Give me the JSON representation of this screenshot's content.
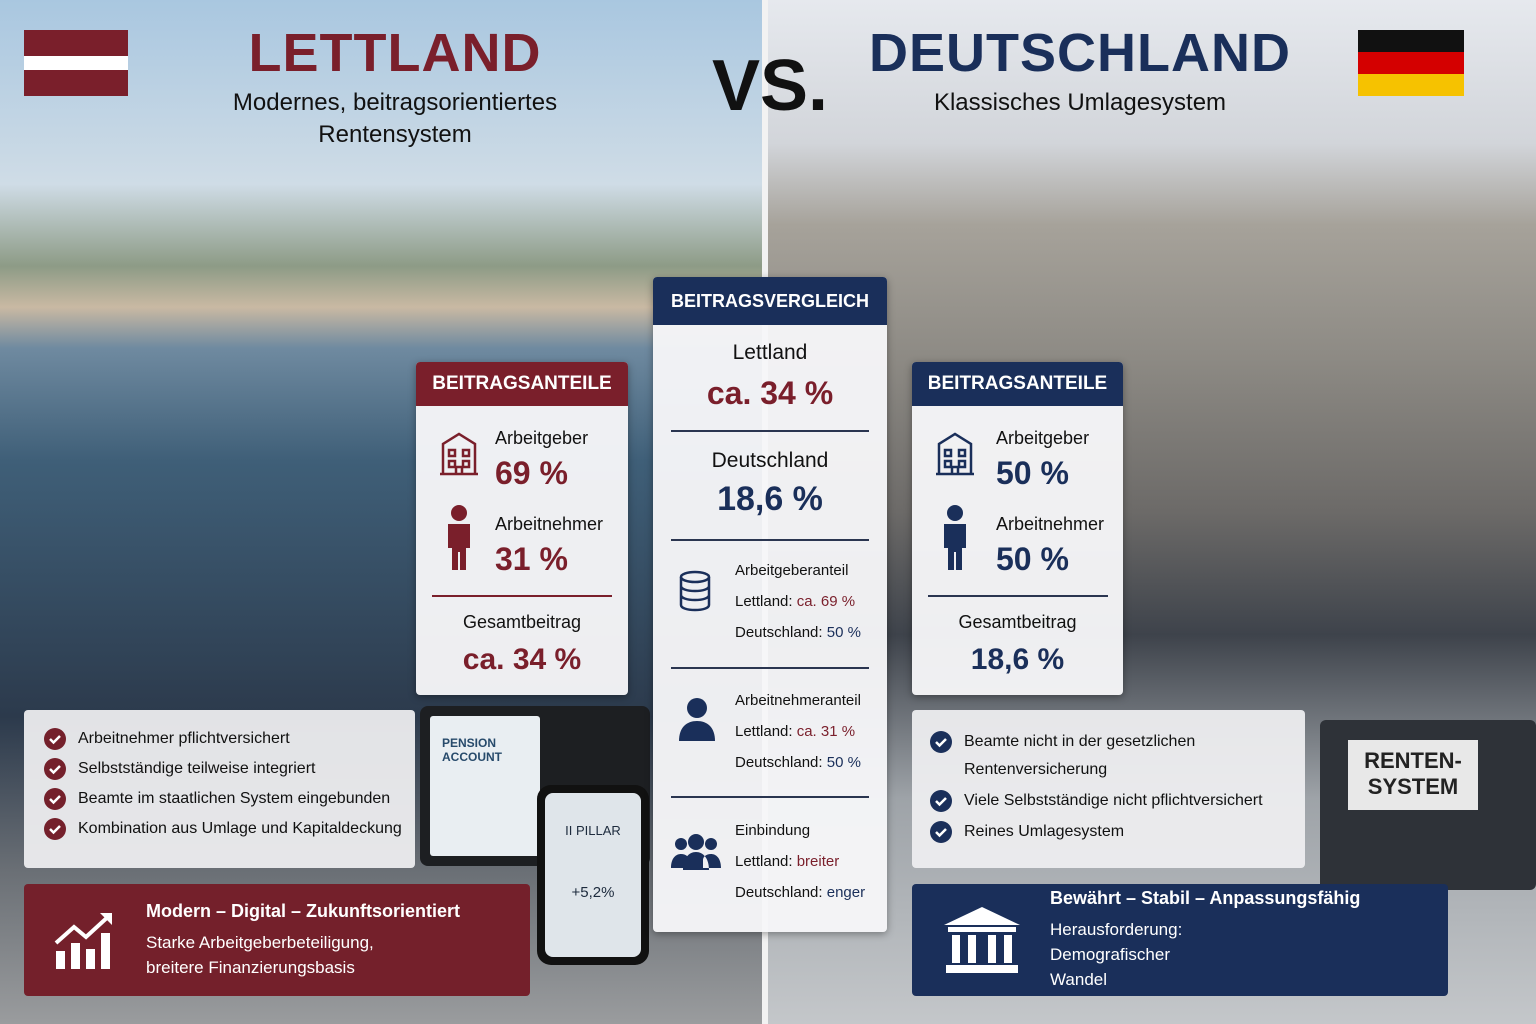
{
  "header": {
    "vs": "VS."
  },
  "left": {
    "title": "LETTLAND",
    "subtitle": "Modernes, beitragsorientiertes Rentensystem",
    "card": {
      "title": "BEITRAGSANTEILE",
      "items": [
        {
          "label": "Arbeitgeber",
          "value": "69 %"
        },
        {
          "label": "Arbeitnehmer",
          "value": "31 %"
        }
      ],
      "total_label": "Gesamtbeitrag",
      "total_value": "ca. 34 %"
    },
    "bullets": [
      "Arbeitnehmer pflichtversichert",
      "Selbstständige teilweise integriert",
      "Beamte im staatlichen System eingebunden",
      "Kombination aus Umlage und Kapitaldeckung"
    ],
    "banner": {
      "title": "Modern – Digital – Zukunftsorientiert",
      "text": "Starke Arbeitgeberbeteiligung, breitere Finanzierungsbasis"
    }
  },
  "middle": {
    "title": "BEITRAGSVERGLEICH",
    "rows": [
      {
        "label": "Lettland",
        "value": "ca. 34 %"
      },
      {
        "label": "Deutschland",
        "value": "18,6 %"
      }
    ],
    "details": [
      {
        "title": "Arbeitgeberanteil",
        "lines": [
          {
            "label": "Lettland:",
            "value": "ca. 69 %"
          },
          {
            "label": "Deutschland:",
            "value": "50 %"
          }
        ]
      },
      {
        "title": "Arbeitnehmeranteil",
        "lines": [
          {
            "label": "Lettland:",
            "value": "ca. 31 %"
          },
          {
            "label": "Deutschland:",
            "value": "50 %"
          }
        ]
      },
      {
        "title": "Einbindung",
        "lines": [
          {
            "label": "Lettland:",
            "value": "breiter"
          },
          {
            "label": "Deutschland:",
            "value": "enger"
          }
        ]
      }
    ]
  },
  "right": {
    "title": "DEUTSCHLAND",
    "subtitle": "Klassisches Umlagesystem",
    "card": {
      "title": "BEITRAGSANTEILE",
      "items": [
        {
          "label": "Arbeitgeber",
          "value": "50 %"
        },
        {
          "label": "Arbeitnehmer",
          "value": "50 %"
        }
      ],
      "total_label": "Gesamtbeitrag",
      "total_value": "18,6 %"
    },
    "bullets": [
      "Beamte nicht in der gesetzlichen Rentenversicherung",
      "Viele Selbstständige nicht pflichtversichert",
      "Reines Umlagesystem"
    ],
    "banner": {
      "title": "Bewährt – Stabil – Anpassungsfähig",
      "text": "Herausforderung: Demografischer Wandel"
    }
  },
  "scene": {
    "tablet": "PENSION ACCOUNT",
    "phone_title": "II PILLAR",
    "phone_value": "+5,2%",
    "binder": "RENTEN-SYSTEM"
  }
}
